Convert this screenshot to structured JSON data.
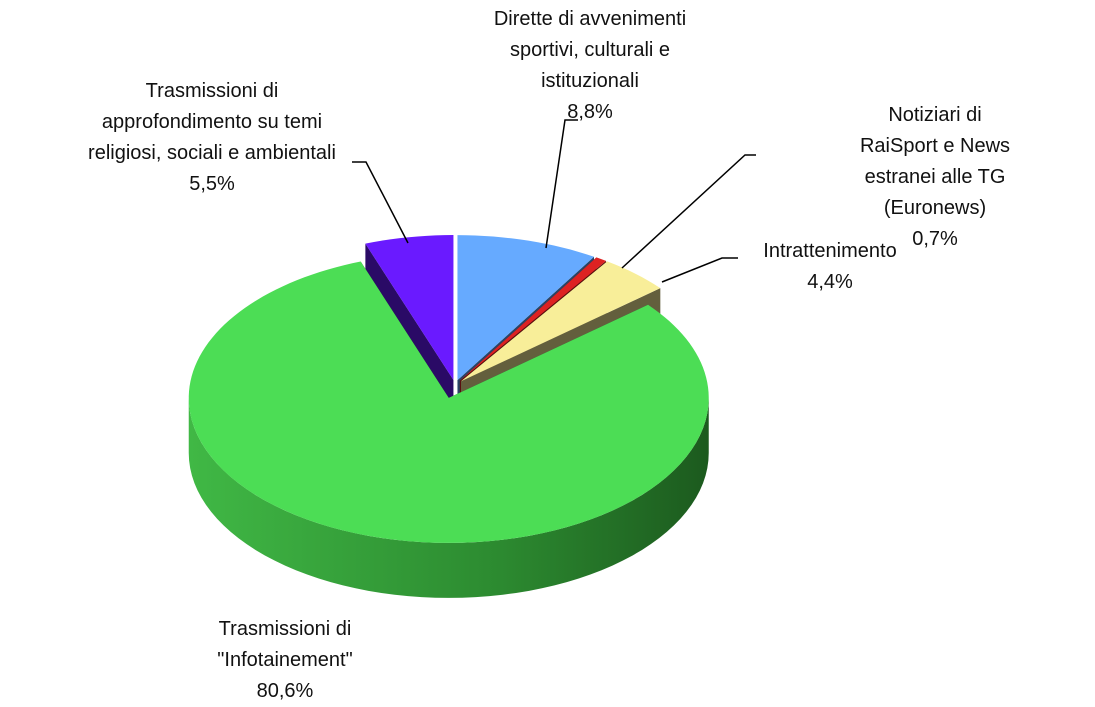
{
  "chart_data": {
    "type": "pie",
    "categories": [
      "Dirette di avvenimenti\nsportivi, culturali e\nistituzionali",
      "Notiziari di RaiSport e News\nestranei alle TG (Euronews)",
      "Intrattenimento",
      "Trasmissioni di\n\"Infotainement\"",
      "Trasmissioni di\napprofondimento su temi\nreligiosi, sociali e ambientali"
    ],
    "values": [
      8.8,
      0.7,
      4.4,
      80.6,
      5.5
    ],
    "value_labels": [
      "8,8%",
      "0,7%",
      "4,4%",
      "80,6%",
      "5,5%"
    ],
    "colors": [
      "#66aaff",
      "#dd2222",
      "#f8ee99",
      "#4cdd55",
      "#6a1aff"
    ]
  }
}
